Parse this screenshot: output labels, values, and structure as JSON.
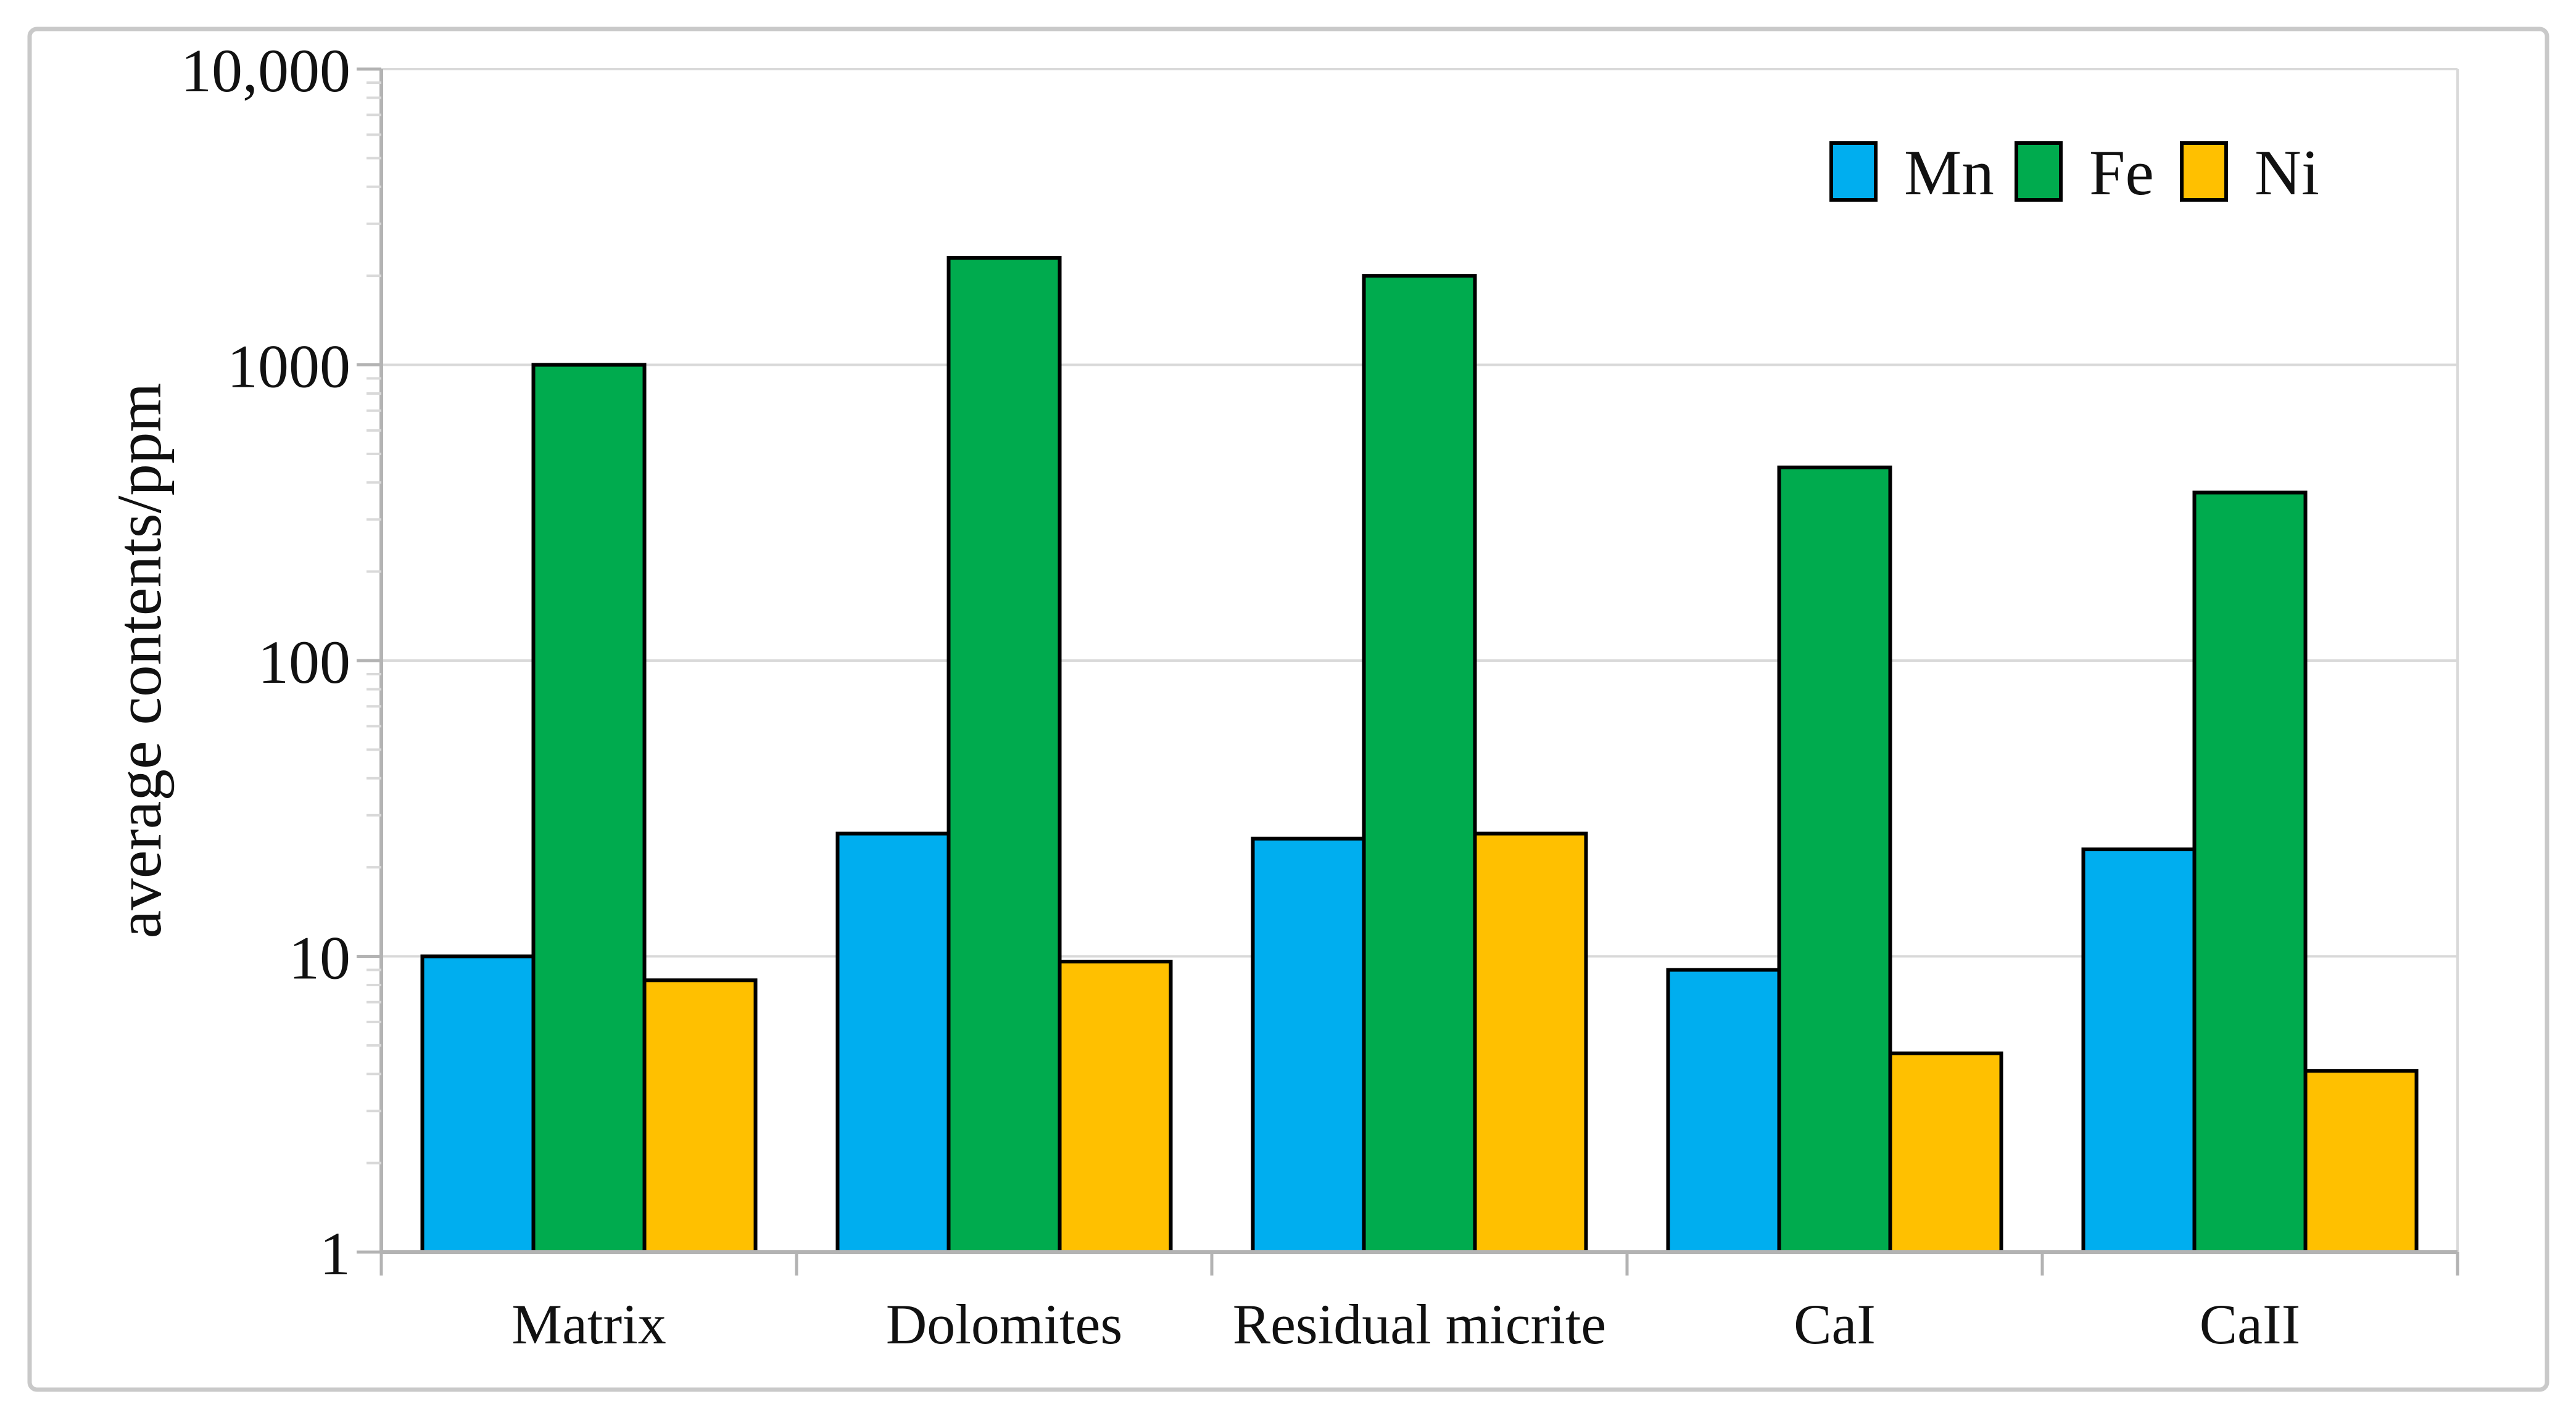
{
  "figure": {
    "background": "#ffffff",
    "frame_color": "#c9c9c9"
  },
  "chart_data": {
    "type": "bar",
    "title": "",
    "categories": [
      "Matrix",
      "Dolomites",
      "Residual micrite",
      "CaI",
      "CaII"
    ],
    "series": [
      {
        "name": "Mn",
        "color": "#00AEEF",
        "values": [
          10,
          26,
          25,
          9,
          23
        ]
      },
      {
        "name": "Fe",
        "color": "#00AB4E",
        "values": [
          1000,
          2300,
          2000,
          450,
          370
        ]
      },
      {
        "name": "Ni",
        "color": "#FFC000",
        "values": [
          8.3,
          9.6,
          26,
          4.7,
          4.1
        ]
      }
    ],
    "xlabel": "",
    "ylabel": "average contents/ppm",
    "yscale": "log",
    "ylim": [
      1,
      10000
    ],
    "ytick_values": [
      1,
      10,
      100,
      1000,
      10000
    ],
    "ytick_labels": [
      "1",
      "10",
      "100",
      "1000",
      "10,000"
    ],
    "grid": "horizontal-major",
    "legend_position": "top-right",
    "bar_border_color": "#000000",
    "gridline_color": "#d9d9d9",
    "axis_color": "#b3b3b3",
    "text_color": "#111111"
  }
}
